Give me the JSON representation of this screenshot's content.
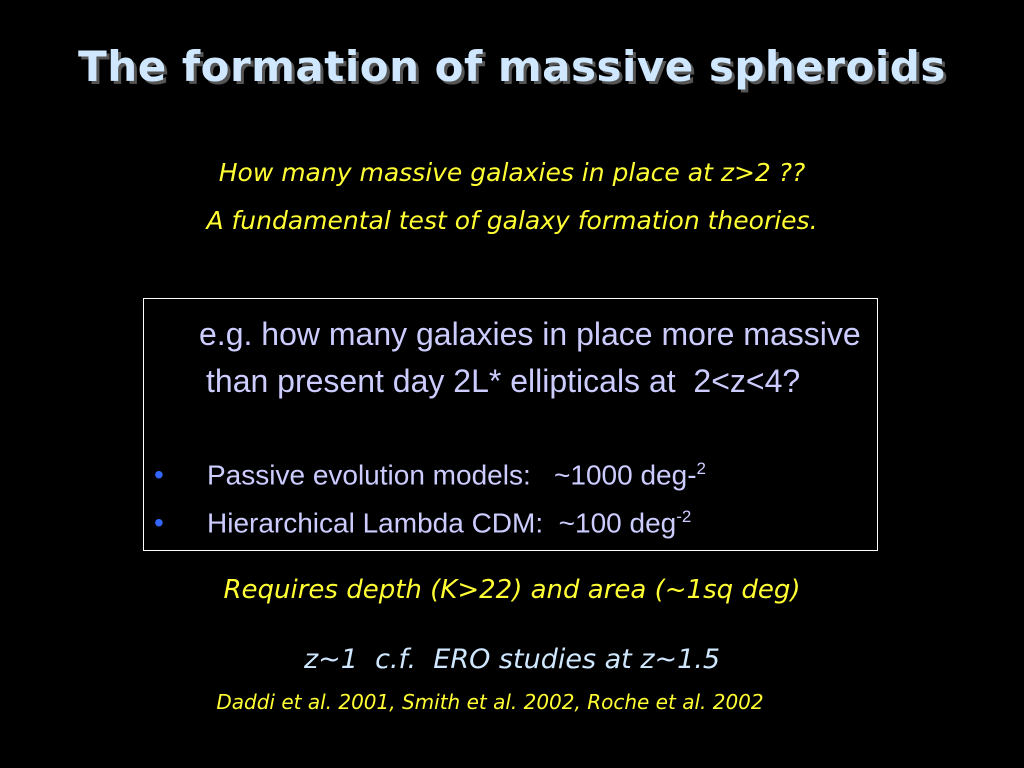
{
  "slide": {
    "title": "The formation of massive spheroids",
    "subtitle": [
      "How many massive galaxies in place at z>2 ??",
      "A fundamental test of galaxy formation theories."
    ],
    "box": {
      "paragraph": "e.g. how many galaxies in place more massive than present day 2L* ellipticals at  2<z<4?",
      "bullets": [
        {
          "text": "Passive evolution models:   ~1000 deg-",
          "sup": "2"
        },
        {
          "text": "Hierarchical Lambda CDM:  ~100 deg",
          "sup": "-2"
        }
      ]
    },
    "requirement": "Requires depth (K>22) and area (~1sq deg)",
    "comparison": "z~1  c.f.  ERO studies at z~1.5",
    "references": "Daddi et al. 2001, Smith et al. 2002, Roche et al. 2002"
  }
}
